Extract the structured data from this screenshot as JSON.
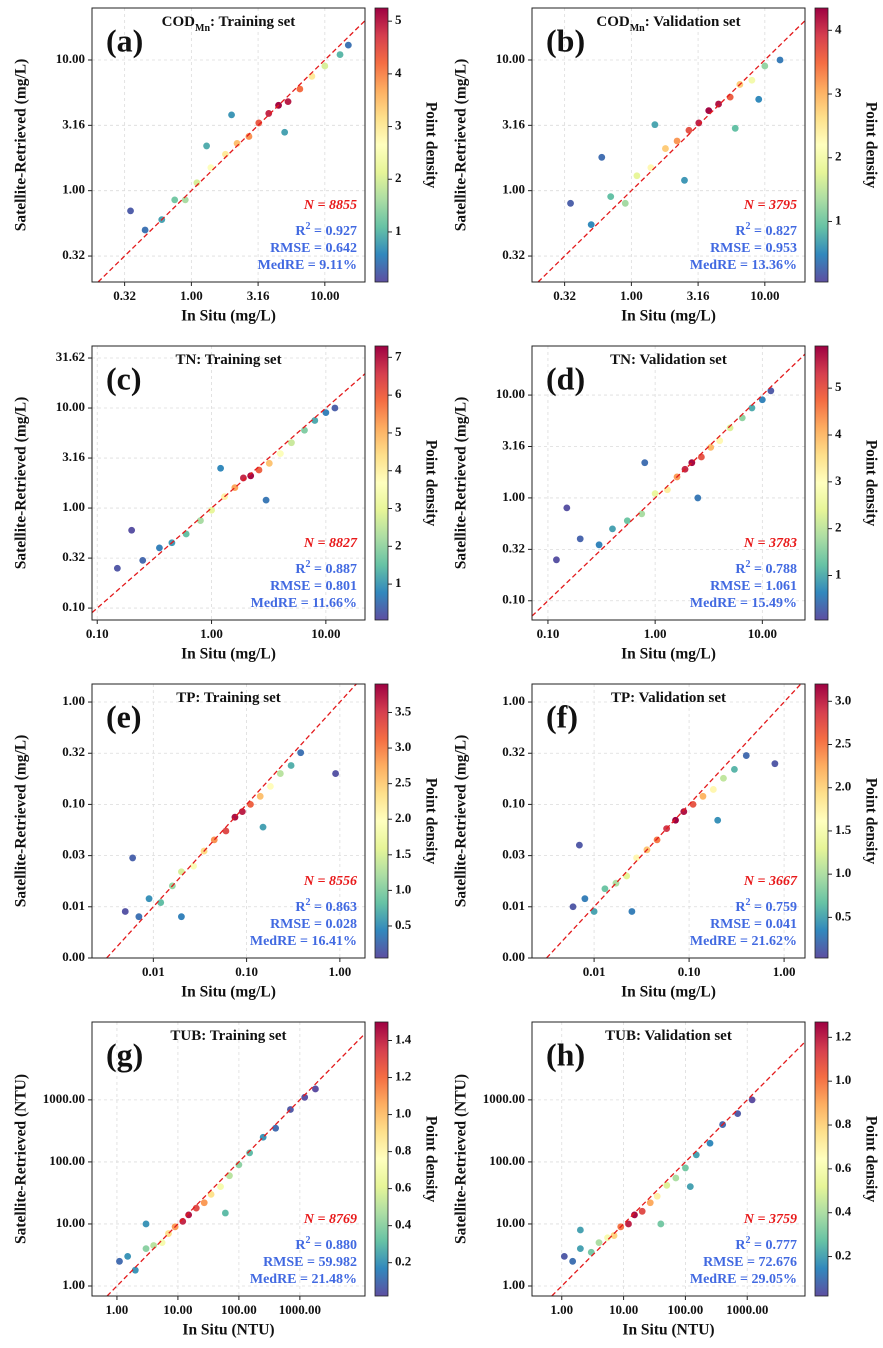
{
  "chart_data": [
    {
      "type": "scatter",
      "title": [
        "COD",
        "Mn",
        ": Training set"
      ],
      "panel_label": "(a)",
      "xlabel": "In Situ (mg/L)",
      "ylabel": "Satellite-Retrieved (mg/L)",
      "colorbar_label": "Point density",
      "colormap": "Spectral_r",
      "xscale": "log",
      "yscale": "log",
      "grid": true,
      "xlim": [
        0.18,
        20
      ],
      "ylim": [
        0.2,
        25
      ],
      "xticks": [
        {
          "value": 0.316,
          "label": "0.32"
        },
        {
          "value": 1,
          "label": "1.00"
        },
        {
          "value": 3.162,
          "label": "3.16"
        },
        {
          "value": 10,
          "label": "10.00"
        }
      ],
      "yticks": [
        {
          "value": 0.316,
          "label": "0.32"
        },
        {
          "value": 1,
          "label": "1.00"
        },
        {
          "value": 3.162,
          "label": "3.16"
        },
        {
          "value": 10,
          "label": "10.00"
        }
      ],
      "clim": [
        0.05,
        5.25
      ],
      "cticks": [
        1,
        2,
        3,
        4,
        5
      ],
      "n_label": "N = 8855",
      "r2": [
        "R",
        "2",
        " = 0.927"
      ],
      "rmse": "RMSE = 0.642",
      "medre": "MedRE = 9.11%",
      "x": [
        0.35,
        0.45,
        0.6,
        0.75,
        0.9,
        1.1,
        1.4,
        1.8,
        2.2,
        2.7,
        3.2,
        3.8,
        4.5,
        5.3,
        6.5,
        8,
        10,
        13,
        15,
        2,
        5,
        1.3
      ],
      "y": [
        0.7,
        0.5,
        0.6,
        0.85,
        0.85,
        1.15,
        1.5,
        1.9,
        2.3,
        2.6,
        3.3,
        3.9,
        4.5,
        4.8,
        6,
        7.5,
        9,
        11,
        13,
        3.8,
        2.8,
        2.2
      ],
      "density": [
        0.2,
        0.4,
        0.8,
        1.2,
        1.6,
        2,
        2.6,
        3,
        3.5,
        3.9,
        4.4,
        4.9,
        5.2,
        5,
        4.2,
        3,
        2,
        1,
        0.4,
        0.7,
        0.8,
        0.9
      ]
    },
    {
      "type": "scatter",
      "title": [
        "COD",
        "Mn",
        ": Validation set"
      ],
      "panel_label": "(b)",
      "xlabel": "In Situ (mg/L)",
      "ylabel": "Satellite-Retrieved (mg/L)",
      "colorbar_label": "Point density",
      "colormap": "Spectral_r",
      "xscale": "log",
      "yscale": "log",
      "grid": true,
      "xlim": [
        0.18,
        20
      ],
      "ylim": [
        0.2,
        25
      ],
      "xticks": [
        {
          "value": 0.316,
          "label": "0.32"
        },
        {
          "value": 1,
          "label": "1.00"
        },
        {
          "value": 3.162,
          "label": "3.16"
        },
        {
          "value": 10,
          "label": "10.00"
        }
      ],
      "yticks": [
        {
          "value": 0.316,
          "label": "0.32"
        },
        {
          "value": 1,
          "label": "1.00"
        },
        {
          "value": 3.162,
          "label": "3.16"
        },
        {
          "value": 10,
          "label": "10.00"
        }
      ],
      "clim": [
        0.05,
        4.35
      ],
      "cticks": [
        1,
        2,
        3,
        4
      ],
      "n_label": "N = 3795",
      "r2": [
        "R",
        "2",
        " = 0.827"
      ],
      "rmse": "RMSE = 0.953",
      "medre": "MedRE = 13.36%",
      "x": [
        0.35,
        0.5,
        0.7,
        0.9,
        1.1,
        1.4,
        1.8,
        2.2,
        2.7,
        3.2,
        3.8,
        4.5,
        5.5,
        6.5,
        8,
        10,
        13,
        0.6,
        2.5,
        6,
        1.5,
        9
      ],
      "y": [
        0.8,
        0.55,
        0.9,
        0.8,
        1.3,
        1.5,
        2.1,
        2.4,
        2.9,
        3.3,
        4.1,
        4.6,
        5.2,
        6.5,
        7,
        9,
        10,
        1.8,
        1.2,
        3,
        3.2,
        5
      ],
      "density": [
        0.2,
        0.5,
        0.9,
        1.3,
        1.8,
        2.3,
        2.8,
        3.2,
        3.7,
        4.1,
        4.3,
        4.2,
        3.6,
        2.8,
        2,
        1.2,
        0.4,
        0.3,
        0.6,
        0.9,
        0.7,
        0.5
      ]
    },
    {
      "type": "scatter",
      "title": [
        "TN: Training set"
      ],
      "panel_label": "(c)",
      "xlabel": "In Situ (mg/L)",
      "ylabel": "Satellite-Retrieved (mg/L)",
      "colorbar_label": "Point density",
      "colormap": "Spectral_r",
      "xscale": "log",
      "yscale": "log",
      "grid": true,
      "xlim": [
        0.09,
        22
      ],
      "ylim": [
        0.076,
        41.7
      ],
      "xticks": [
        {
          "value": 0.1,
          "label": "0.10"
        },
        {
          "value": 1,
          "label": "1.00"
        },
        {
          "value": 10,
          "label": "10.00"
        }
      ],
      "yticks": [
        {
          "value": 0.1,
          "label": "0.10"
        },
        {
          "value": 0.316,
          "label": "0.32"
        },
        {
          "value": 1,
          "label": "1.00"
        },
        {
          "value": 3.162,
          "label": "3.16"
        },
        {
          "value": 10,
          "label": "10.00"
        },
        {
          "value": 31.62,
          "label": "31.62"
        }
      ],
      "clim": [
        0.05,
        7.3
      ],
      "cticks": [
        1,
        2,
        3,
        4,
        5,
        6,
        7
      ],
      "n_label": "N = 8827",
      "r2": [
        "R",
        "2",
        " = 0.887"
      ],
      "rmse": "RMSE = 0.801",
      "medre": "MedRE = 11.66%",
      "x": [
        0.15,
        0.25,
        0.35,
        0.45,
        0.6,
        0.8,
        1.0,
        1.3,
        1.6,
        1.9,
        2.2,
        2.6,
        3.2,
        4,
        5,
        6.5,
        8,
        10,
        12,
        0.2,
        3,
        1.2
      ],
      "y": [
        0.25,
        0.3,
        0.4,
        0.45,
        0.55,
        0.75,
        0.95,
        1.3,
        1.6,
        2,
        2.1,
        2.4,
        2.8,
        3.5,
        4.5,
        6,
        7.5,
        9,
        10,
        0.6,
        1.2,
        2.5
      ],
      "density": [
        0.2,
        0.4,
        0.7,
        1,
        1.5,
        2.2,
        3,
        4,
        5.2,
        6.8,
        7.2,
        6,
        4.8,
        3.6,
        2.6,
        1.8,
        1.2,
        0.7,
        0.3,
        0.1,
        0.6,
        0.8
      ]
    },
    {
      "type": "scatter",
      "title": [
        "TN: Validation set"
      ],
      "panel_label": "(d)",
      "xlabel": "In Situ (mg/L)",
      "ylabel": "Satellite-Retrieved (mg/L)",
      "colorbar_label": "Point density",
      "colormap": "Spectral_r",
      "xscale": "log",
      "yscale": "log",
      "grid": true,
      "xlim": [
        0.071,
        25
      ],
      "ylim": [
        0.065,
        30
      ],
      "xticks": [
        {
          "value": 0.1,
          "label": "0.10"
        },
        {
          "value": 1,
          "label": "1.00"
        },
        {
          "value": 10,
          "label": "10.00"
        }
      ],
      "yticks": [
        {
          "value": 0.1,
          "label": "0.10"
        },
        {
          "value": 0.316,
          "label": "0.32"
        },
        {
          "value": 1,
          "label": "1.00"
        },
        {
          "value": 3.162,
          "label": "3.16"
        },
        {
          "value": 10,
          "label": "10.00"
        }
      ],
      "clim": [
        0.05,
        5.9
      ],
      "cticks": [
        1,
        2,
        3,
        4,
        5
      ],
      "n_label": "N = 3783",
      "r2": [
        "R",
        "2",
        " = 0.788"
      ],
      "rmse": "RMSE = 1.061",
      "medre": "MedRE = 15.49%",
      "x": [
        0.12,
        0.2,
        0.3,
        0.4,
        0.55,
        0.75,
        1,
        1.3,
        1.6,
        1.9,
        2.2,
        2.7,
        3.3,
        4,
        5,
        6.5,
        8,
        10,
        12,
        0.15,
        2.5,
        0.8
      ],
      "y": [
        0.25,
        0.4,
        0.35,
        0.5,
        0.6,
        0.7,
        1.1,
        1.2,
        1.6,
        1.9,
        2.2,
        2.5,
        3.1,
        3.6,
        4.8,
        6,
        7.5,
        9,
        11,
        0.8,
        1,
        2.2
      ],
      "density": [
        0.1,
        0.3,
        0.6,
        0.9,
        1.3,
        1.8,
        2.5,
        3.3,
        4.3,
        5.5,
        5.8,
        5,
        4,
        3.1,
        2.3,
        1.6,
        1,
        0.6,
        0.2,
        0.1,
        0.5,
        0.4
      ]
    },
    {
      "type": "scatter",
      "title": [
        "TP: Training set"
      ],
      "panel_label": "(e)",
      "xlabel": "In Situ (mg/L)",
      "ylabel": "Satellite-Retrieved (mg/L)",
      "colorbar_label": "Point density",
      "colormap": "Spectral_r",
      "xscale": "log",
      "yscale": "log",
      "grid": true,
      "xlim": [
        0.0022,
        1.86
      ],
      "ylim": [
        0.00316,
        1.5
      ],
      "xticks": [
        {
          "value": 0.01,
          "label": "0.01"
        },
        {
          "value": 0.1,
          "label": "0.10"
        },
        {
          "value": 1,
          "label": "1.00"
        }
      ],
      "yticks": [
        {
          "value": 0.00316,
          "label": "0.00"
        },
        {
          "value": 0.01,
          "label": "0.01"
        },
        {
          "value": 0.0316,
          "label": "0.03"
        },
        {
          "value": 0.1,
          "label": "0.10"
        },
        {
          "value": 0.316,
          "label": "0.32"
        },
        {
          "value": 1,
          "label": "1.00"
        }
      ],
      "clim": [
        0.05,
        3.9
      ],
      "cticks": [
        0.5,
        {
          "value": 1,
          "label": "1.0"
        },
        1.5,
        {
          "value": 2,
          "label": "2.0"
        },
        2.5,
        {
          "value": 3,
          "label": "3.0"
        },
        3.5
      ],
      "n_label": "N = 8556",
      "r2": [
        "R",
        "2",
        " = 0.863"
      ],
      "rmse": "RMSE = 0.028",
      "medre": "MedRE = 16.41%",
      "x": [
        0.005,
        0.007,
        0.009,
        0.012,
        0.016,
        0.02,
        0.027,
        0.035,
        0.045,
        0.06,
        0.075,
        0.09,
        0.11,
        0.14,
        0.18,
        0.23,
        0.3,
        0.38,
        0.006,
        0.02,
        0.15,
        0.9
      ],
      "y": [
        0.009,
        0.008,
        0.012,
        0.011,
        0.016,
        0.022,
        0.025,
        0.035,
        0.045,
        0.055,
        0.075,
        0.085,
        0.1,
        0.12,
        0.15,
        0.2,
        0.24,
        0.32,
        0.03,
        0.008,
        0.06,
        0.2
      ],
      "density": [
        0.1,
        0.3,
        0.5,
        0.8,
        1.1,
        1.5,
        1.9,
        2.4,
        2.9,
        3.4,
        3.8,
        3.7,
        3.2,
        2.6,
        2,
        1.3,
        0.7,
        0.3,
        0.2,
        0.4,
        0.6,
        0.1
      ]
    },
    {
      "type": "scatter",
      "title": [
        "TP: Validation set"
      ],
      "panel_label": "(f)",
      "xlabel": "In Situ (mg/L)",
      "ylabel": "Satellite-Retrieved (mg/L)",
      "colorbar_label": "Point density",
      "colormap": "Spectral_r",
      "xscale": "log",
      "yscale": "log",
      "grid": true,
      "xlim": [
        0.00222,
        1.66
      ],
      "ylim": [
        0.00316,
        1.5
      ],
      "xticks": [
        {
          "value": 0.01,
          "label": "0.01"
        },
        {
          "value": 0.1,
          "label": "0.10"
        },
        {
          "value": 1,
          "label": "1.00"
        }
      ],
      "yticks": [
        {
          "value": 0.00316,
          "label": "0.00"
        },
        {
          "value": 0.01,
          "label": "0.01"
        },
        {
          "value": 0.0316,
          "label": "0.03"
        },
        {
          "value": 0.1,
          "label": "0.10"
        },
        {
          "value": 0.316,
          "label": "0.32"
        },
        {
          "value": 1,
          "label": "1.00"
        }
      ],
      "clim": [
        0.03,
        3.2
      ],
      "cticks": [
        0.5,
        {
          "value": 1,
          "label": "1.0"
        },
        1.5,
        {
          "value": 2,
          "label": "2.0"
        },
        2.5,
        {
          "value": 3,
          "label": "3.0"
        }
      ],
      "n_label": "N = 3667",
      "r2": [
        "R",
        "2",
        " = 0.759"
      ],
      "rmse": "RMSE = 0.041",
      "medre": "MedRE = 21.62%",
      "x": [
        0.006,
        0.008,
        0.01,
        0.013,
        0.017,
        0.022,
        0.028,
        0.036,
        0.046,
        0.058,
        0.072,
        0.088,
        0.11,
        0.14,
        0.18,
        0.23,
        0.3,
        0.4,
        0.007,
        0.025,
        0.2,
        0.8
      ],
      "y": [
        0.01,
        0.012,
        0.009,
        0.015,
        0.017,
        0.02,
        0.03,
        0.036,
        0.045,
        0.058,
        0.07,
        0.085,
        0.1,
        0.12,
        0.14,
        0.18,
        0.22,
        0.3,
        0.04,
        0.009,
        0.07,
        0.25
      ],
      "density": [
        0.1,
        0.3,
        0.5,
        0.7,
        1,
        1.3,
        1.7,
        2.1,
        2.5,
        2.9,
        3.2,
        3.1,
        2.7,
        2.2,
        1.7,
        1.1,
        0.6,
        0.2,
        0.1,
        0.3,
        0.4,
        0.1
      ]
    },
    {
      "type": "scatter",
      "title": [
        "TUB: Training set"
      ],
      "panel_label": "(g)",
      "xlabel": "In Situ (NTU)",
      "ylabel": "Satellite-Retrieved (NTU)",
      "colorbar_label": "Point density",
      "colormap": "Spectral_r",
      "xscale": "log",
      "yscale": "log",
      "grid": true,
      "xlim": [
        0.39,
        11700
      ],
      "ylim": [
        0.69,
        18000
      ],
      "xticks": [
        {
          "value": 1,
          "label": "1.00"
        },
        {
          "value": 10,
          "label": "10.00"
        },
        {
          "value": 100,
          "label": "100.00"
        },
        {
          "value": 1000,
          "label": "1000.00"
        }
      ],
      "yticks": [
        {
          "value": 1,
          "label": "1.00"
        },
        {
          "value": 10,
          "label": "10.00"
        },
        {
          "value": 100,
          "label": "100.00"
        },
        {
          "value": 1000,
          "label": "1000.00"
        }
      ],
      "clim": [
        0.02,
        1.5
      ],
      "cticks": [
        0.2,
        0.4,
        0.6,
        0.8,
        {
          "value": 1,
          "label": "1.0"
        },
        1.2,
        1.4
      ],
      "n_label": "N = 8769",
      "r2": [
        "R",
        "2",
        " = 0.880"
      ],
      "rmse": "RMSE = 59.982",
      "medre": "MedRE = 21.48%",
      "x": [
        1.1,
        1.5,
        2,
        3,
        4,
        5.5,
        7,
        9,
        12,
        15,
        20,
        27,
        35,
        50,
        70,
        100,
        150,
        250,
        400,
        700,
        1200,
        1800,
        3,
        60
      ],
      "y": [
        2.5,
        3,
        1.8,
        4,
        4.5,
        5,
        7,
        9,
        11,
        14,
        18,
        22,
        30,
        40,
        60,
        90,
        140,
        250,
        350,
        700,
        1100,
        1500,
        10,
        15
      ],
      "density": [
        0.1,
        0.2,
        0.2,
        0.4,
        0.5,
        0.7,
        0.9,
        1.1,
        1.4,
        1.45,
        1.3,
        1.1,
        0.9,
        0.7,
        0.5,
        0.4,
        0.3,
        0.2,
        0.1,
        0.05,
        0.03,
        0.02,
        0.2,
        0.3
      ]
    },
    {
      "type": "scatter",
      "title": [
        "TUB: Validation set"
      ],
      "panel_label": "(h)",
      "xlabel": "In Situ (NTU)",
      "ylabel": "Satellite-Retrieved (NTU)",
      "colorbar_label": "Point density",
      "colormap": "Spectral_r",
      "xscale": "log",
      "yscale": "log",
      "grid": true,
      "xlim": [
        0.33,
        8600
      ],
      "ylim": [
        0.69,
        18000
      ],
      "xticks": [
        {
          "value": 1,
          "label": "1.00"
        },
        {
          "value": 10,
          "label": "10.00"
        },
        {
          "value": 100,
          "label": "100.00"
        },
        {
          "value": 1000,
          "label": "1000.00"
        }
      ],
      "yticks": [
        {
          "value": 1,
          "label": "1.00"
        },
        {
          "value": 10,
          "label": "10.00"
        },
        {
          "value": 100,
          "label": "100.00"
        },
        {
          "value": 1000,
          "label": "1000.00"
        }
      ],
      "clim": [
        0.02,
        1.27
      ],
      "cticks": [
        0.2,
        0.4,
        0.6,
        0.8,
        {
          "value": 1,
          "label": "1.0"
        },
        1.2
      ],
      "n_label": "N = 3759",
      "r2": [
        "R",
        "2",
        " = 0.777"
      ],
      "rmse": "RMSE = 72.676",
      "medre": "MedRE = 29.05%",
      "x": [
        1.1,
        1.5,
        2,
        3,
        4,
        5.5,
        7,
        9,
        12,
        15,
        20,
        27,
        35,
        50,
        70,
        100,
        150,
        250,
        400,
        700,
        1200,
        2,
        40,
        120
      ],
      "y": [
        3,
        2.5,
        4,
        3.5,
        5,
        6,
        6.5,
        9,
        10,
        14,
        16,
        22,
        28,
        42,
        55,
        80,
        130,
        200,
        400,
        600,
        1000,
        8,
        10,
        40
      ],
      "density": [
        0.05,
        0.1,
        0.2,
        0.3,
        0.4,
        0.6,
        0.8,
        1,
        1.2,
        1.25,
        1.1,
        0.9,
        0.7,
        0.5,
        0.4,
        0.3,
        0.2,
        0.15,
        0.08,
        0.05,
        0.02,
        0.2,
        0.3,
        0.2
      ]
    }
  ]
}
